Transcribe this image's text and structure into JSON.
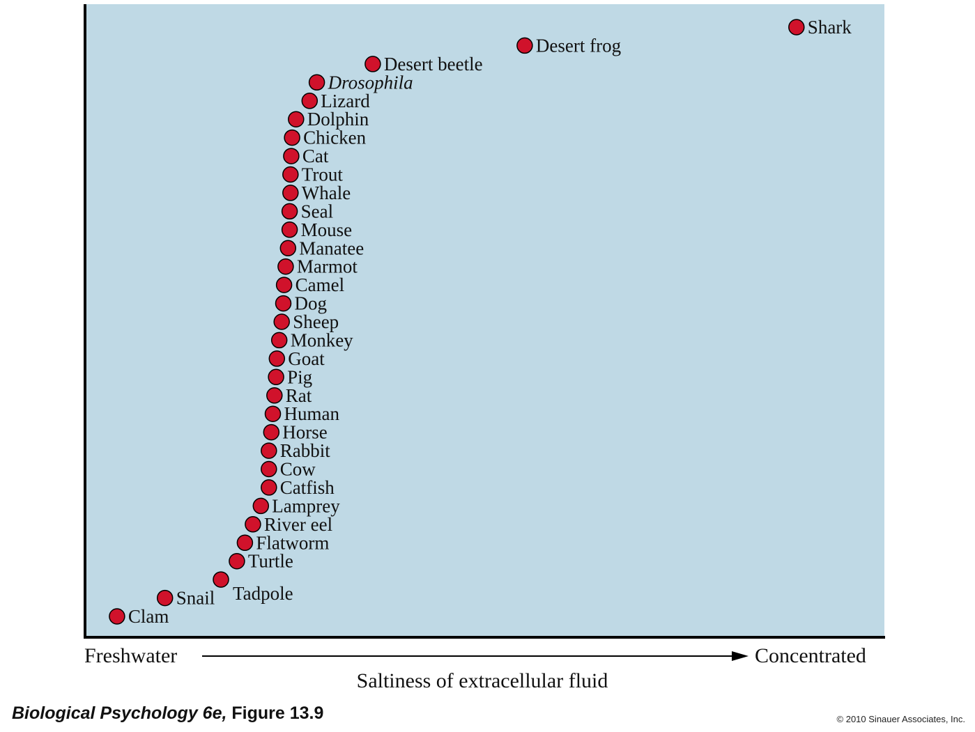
{
  "chart_data": {
    "type": "scatter",
    "title": "",
    "xlabel": "Saltiness of extracellular fluid",
    "x_left_label": "Freshwater",
    "x_right_label": "Concentrated",
    "ylabel": "",
    "grid": false,
    "legend": "none",
    "colors": {
      "background": "#bfd9e5",
      "point_fill": "#d0122b",
      "point_stroke": "#000000",
      "axis": "#000000"
    },
    "points": [
      {
        "label": "Clam",
        "x": 0.04,
        "rank": 1
      },
      {
        "label": "Snail",
        "x": 0.1,
        "rank": 2
      },
      {
        "label": "Tadpole",
        "x": 0.17,
        "rank": 3
      },
      {
        "label": "Turtle",
        "x": 0.19,
        "rank": 4
      },
      {
        "label": "Flatworm",
        "x": 0.2,
        "rank": 5
      },
      {
        "label": "River eel",
        "x": 0.21,
        "rank": 6
      },
      {
        "label": "Lamprey",
        "x": 0.22,
        "rank": 7
      },
      {
        "label": "Catfish",
        "x": 0.23,
        "rank": 8
      },
      {
        "label": "Cow",
        "x": 0.23,
        "rank": 9
      },
      {
        "label": "Rabbit",
        "x": 0.23,
        "rank": 10
      },
      {
        "label": "Horse",
        "x": 0.233,
        "rank": 11
      },
      {
        "label": "Human",
        "x": 0.235,
        "rank": 12
      },
      {
        "label": "Rat",
        "x": 0.237,
        "rank": 13
      },
      {
        "label": "Pig",
        "x": 0.239,
        "rank": 14
      },
      {
        "label": "Goat",
        "x": 0.24,
        "rank": 15
      },
      {
        "label": "Monkey",
        "x": 0.243,
        "rank": 16
      },
      {
        "label": "Sheep",
        "x": 0.246,
        "rank": 17
      },
      {
        "label": "Dog",
        "x": 0.248,
        "rank": 18
      },
      {
        "label": "Camel",
        "x": 0.249,
        "rank": 19
      },
      {
        "label": "Marmot",
        "x": 0.251,
        "rank": 20
      },
      {
        "label": "Manatee",
        "x": 0.254,
        "rank": 21
      },
      {
        "label": "Mouse",
        "x": 0.256,
        "rank": 22
      },
      {
        "label": "Seal",
        "x": 0.256,
        "rank": 23
      },
      {
        "label": "Whale",
        "x": 0.257,
        "rank": 24
      },
      {
        "label": "Trout",
        "x": 0.257,
        "rank": 25
      },
      {
        "label": "Cat",
        "x": 0.258,
        "rank": 26
      },
      {
        "label": "Chicken",
        "x": 0.259,
        "rank": 27
      },
      {
        "label": "Dolphin",
        "x": 0.264,
        "rank": 28
      },
      {
        "label": "Lizard",
        "x": 0.281,
        "rank": 29
      },
      {
        "label": "Drosophila",
        "x": 0.29,
        "rank": 30,
        "italic": true
      },
      {
        "label": "Desert beetle",
        "x": 0.36,
        "rank": 31
      },
      {
        "label": "Desert frog",
        "x": 0.55,
        "rank": 32
      },
      {
        "label": "Shark",
        "x": 0.89,
        "rank": 33
      }
    ]
  },
  "footer": {
    "caption_italic": "Biological Psychology 6e,",
    "caption_rest": " Figure 13.9",
    "copyright": "© 2010 Sinauer Associates, Inc."
  }
}
